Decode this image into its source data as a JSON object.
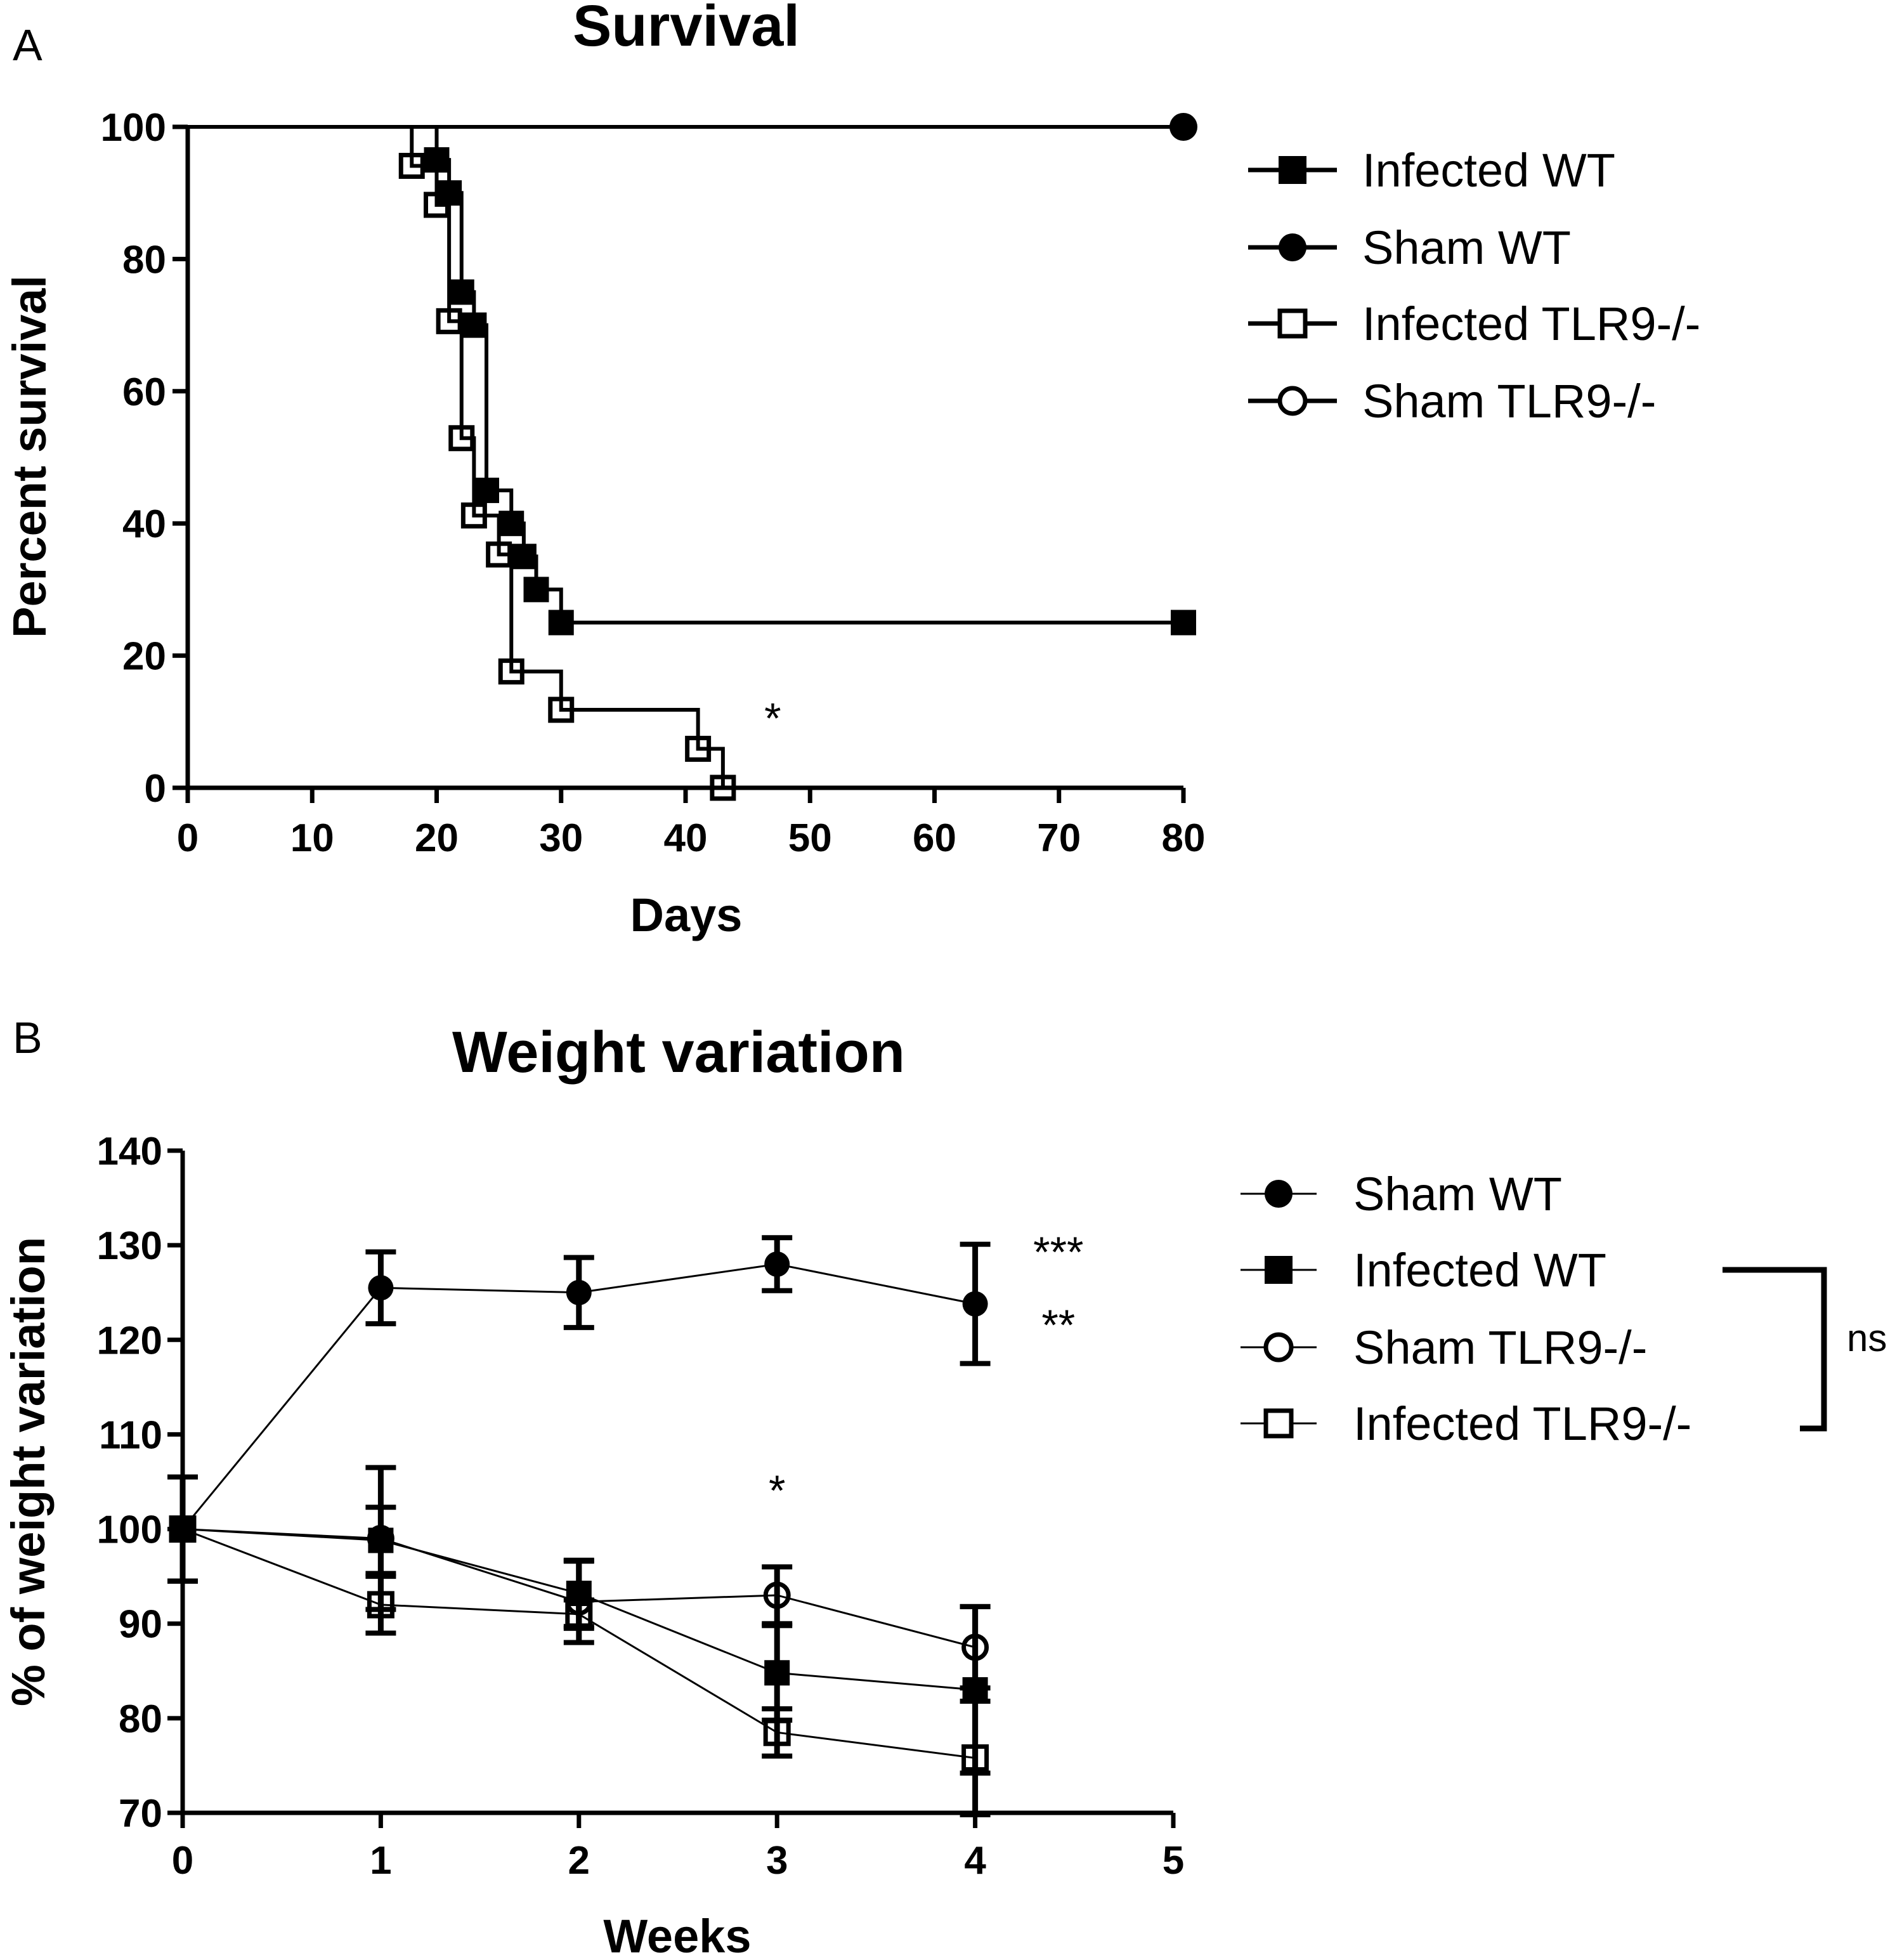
{
  "chart_data": [
    {
      "type": "line",
      "panel_label": "A",
      "title": "Survival",
      "xlabel": "Days",
      "ylabel": "Percent survival",
      "xlim": [
        0,
        80
      ],
      "ylim": [
        0,
        100
      ],
      "xticks": [
        "0",
        "10",
        "20",
        "30",
        "40",
        "50",
        "60",
        "70",
        "80"
      ],
      "yticks": [
        "0",
        "20",
        "40",
        "60",
        "80",
        "100"
      ],
      "step": true,
      "series": [
        {
          "name": "Infected WT",
          "marker": "square-filled",
          "x": [
            0,
            20,
            21,
            22,
            23,
            24,
            26,
            27,
            28,
            30,
            80
          ],
          "y": [
            100,
            95,
            90,
            75,
            70,
            45,
            40,
            35,
            30,
            25,
            25
          ]
        },
        {
          "name": "Sham WT",
          "marker": "circle-filled",
          "x": [
            0,
            80
          ],
          "y": [
            100,
            100
          ]
        },
        {
          "name": "Infected TLR9-/-",
          "marker": "square-open",
          "x": [
            0,
            18,
            20,
            21,
            22,
            23,
            25,
            26,
            30,
            41,
            43
          ],
          "y": [
            100,
            94.1,
            88.2,
            70.6,
            52.9,
            41.2,
            35.3,
            17.6,
            11.8,
            5.9,
            0
          ]
        },
        {
          "name": "Sham TLR9-/-",
          "marker": "circle-open",
          "x": [
            0,
            80
          ],
          "y": [
            100,
            100
          ]
        }
      ],
      "annotations": [
        {
          "text": "*",
          "x": 47,
          "y": 11
        }
      ],
      "legend_position": "right"
    },
    {
      "type": "line",
      "panel_label": "B",
      "title": "Weight variation",
      "xlabel": "Weeks",
      "ylabel": "% of weight variation",
      "xlim": [
        0,
        5
      ],
      "ylim": [
        70,
        140
      ],
      "xticks": [
        "0",
        "1",
        "2",
        "3",
        "4",
        "5"
      ],
      "yticks": [
        "70",
        "80",
        "90",
        "100",
        "110",
        "120",
        "130",
        "140"
      ],
      "x": [
        0,
        1,
        2,
        3,
        4
      ],
      "series": [
        {
          "name": "Sham WT",
          "marker": "circle-filled",
          "values": [
            100,
            125.5,
            125,
            128,
            123.8
          ],
          "err": [
            5.5,
            3.8,
            3.7,
            2.8,
            6.3
          ]
        },
        {
          "name": "Infected WT",
          "marker": "square-filled",
          "values": [
            100,
            98.8,
            93.2,
            84.8,
            83
          ],
          "err": [
            5.5,
            3.5,
            3.5,
            5,
            8.8
          ]
        },
        {
          "name": "Sham TLR9-/-",
          "marker": "circle-open",
          "values": [
            100,
            99,
            92.3,
            93,
            87.5
          ],
          "err": [
            5.5,
            7.5,
            4.3,
            3,
            4.3
          ]
        },
        {
          "name": "Infected TLR9-/-",
          "marker": "square-open",
          "values": [
            100,
            92,
            91,
            78.5,
            75.8
          ],
          "err": [
            5.5,
            3,
            1.5,
            2.5,
            6
          ]
        }
      ],
      "annotations": [
        {
          "text": "***",
          "x": 4.42,
          "y": 129.2
        },
        {
          "text": "**",
          "x": 4.42,
          "y": 121.5
        },
        {
          "text": "*",
          "x": 3,
          "y": 104
        }
      ],
      "bracket": {
        "label": "ns",
        "from": "Infected WT",
        "to": "Infected TLR9-/-"
      },
      "legend_position": "right"
    }
  ]
}
